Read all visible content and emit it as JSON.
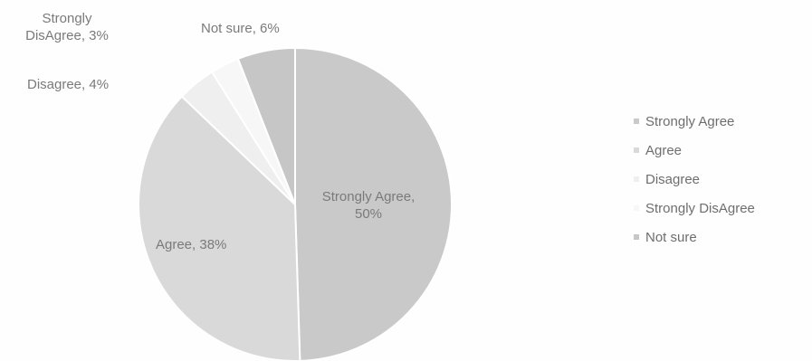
{
  "chart_data": {
    "type": "pie",
    "title": "",
    "slices": [
      {
        "name": "Strongly Agree",
        "value": 50,
        "label": "Strongly Agree,\n50%",
        "color": "#c9c9c9"
      },
      {
        "name": "Agree",
        "value": 38,
        "label": "Agree, 38%",
        "color": "#d9d9d9"
      },
      {
        "name": "Disagree",
        "value": 4,
        "label": "Disagree, 4%",
        "color": "#efefef"
      },
      {
        "name": "Strongly DisAgree",
        "value": 3,
        "label": "Strongly\nDisAgree, 3%",
        "color": "#f7f7f7"
      },
      {
        "name": "Not sure",
        "value": 6,
        "label": "Not sure, 6%",
        "color": "#c6c6c6"
      }
    ],
    "legend": {
      "placement": "right",
      "entries": [
        "Strongly Agree",
        "Agree",
        "Disagree",
        "Strongly DisAgree",
        "Not sure"
      ]
    }
  }
}
